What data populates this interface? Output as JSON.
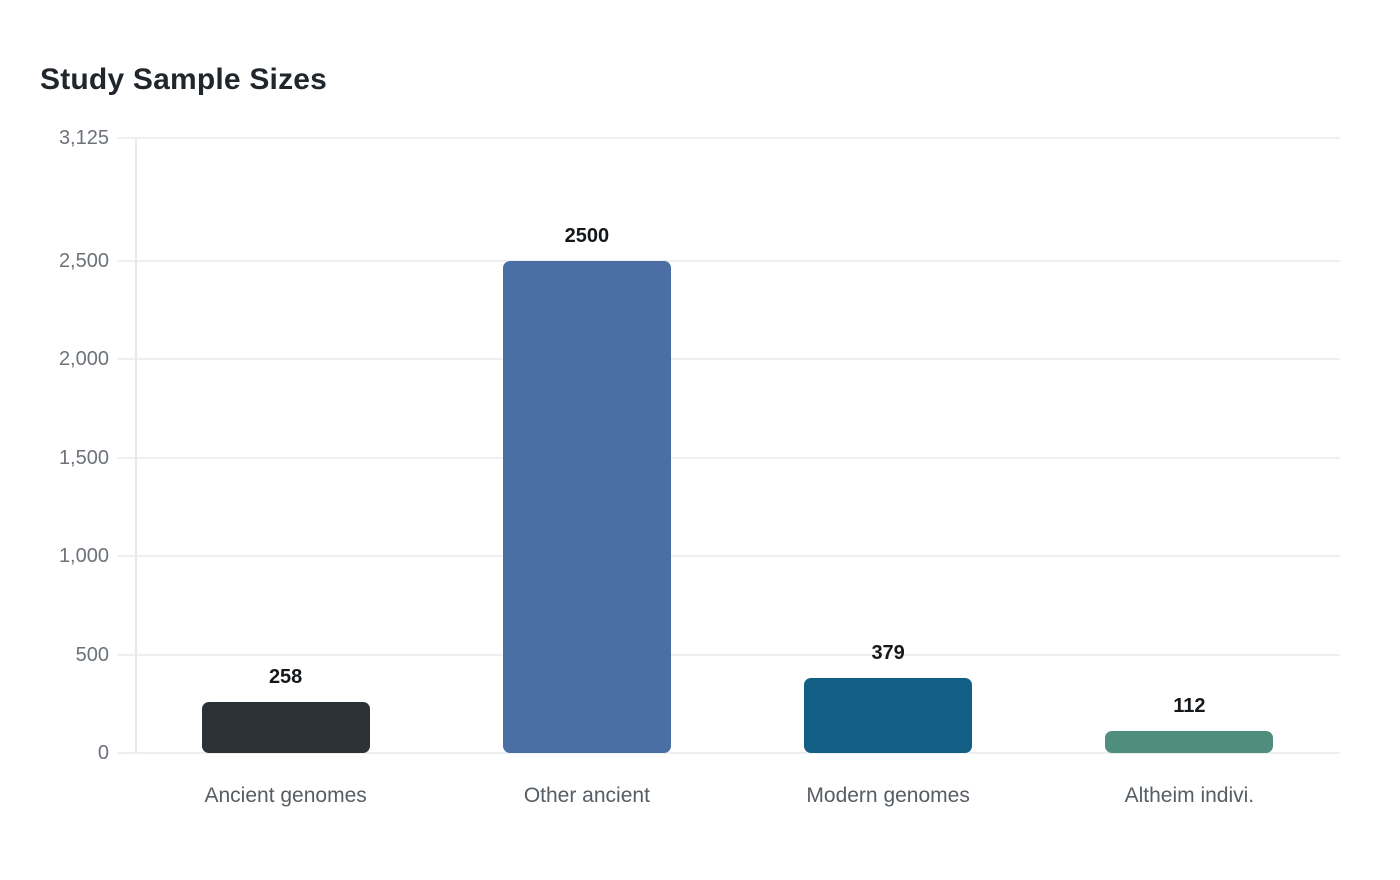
{
  "title": "Study Sample Sizes",
  "chart_data": {
    "type": "bar",
    "title": "Study Sample Sizes",
    "xlabel": "",
    "ylabel": "",
    "categories": [
      "Ancient genomes",
      "Other ancient",
      "Modern genomes",
      "Altheim indivi."
    ],
    "values": [
      258,
      2500,
      379,
      112
    ],
    "value_labels": [
      "258",
      "2500",
      "379",
      "112"
    ],
    "bar_colors": [
      "#2b3337",
      "#4b6fa5",
      "#145f85",
      "#4f8e7d"
    ],
    "ylim": [
      0,
      3125
    ],
    "yticks": [
      0,
      500,
      1000,
      1500,
      2000,
      2500,
      3125
    ],
    "ytick_labels": [
      "0",
      "500",
      "1,000",
      "1,500",
      "2,000",
      "2,500",
      "3,125"
    ],
    "grid": true,
    "legend": false,
    "gridline_color": "#eeeff0",
    "axis_line_color": "#e6e8ea",
    "tick_label_color": "#6c7278",
    "category_label_color": "#565d63",
    "value_label_color": "#15181a",
    "title_color": "#20262b",
    "background_color": "#ffffff"
  }
}
